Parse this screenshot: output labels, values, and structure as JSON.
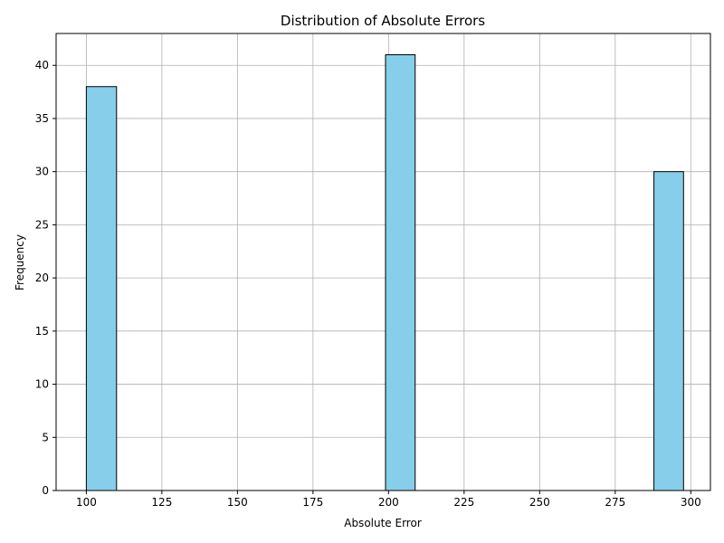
{
  "chart_data": {
    "type": "bar",
    "title": "Distribution of Absolute Errors",
    "xlabel": "Absolute Error",
    "ylabel": "Frequency",
    "xlim": [
      90,
      306.5
    ],
    "ylim": [
      0,
      43
    ],
    "x_ticks": [
      100,
      125,
      150,
      175,
      200,
      225,
      250,
      275,
      300
    ],
    "y_ticks": [
      0,
      5,
      10,
      15,
      20,
      25,
      30,
      35,
      40
    ],
    "grid": true,
    "bins": [
      {
        "start": 100,
        "end": 110,
        "count": 38
      },
      {
        "start": 199,
        "end": 208.8,
        "count": 41
      },
      {
        "start": 287.8,
        "end": 297.6,
        "count": 30
      }
    ],
    "colors": {
      "bar_fill": "#87CEEB",
      "bar_edge": "#000000",
      "grid": "#b0b0b0"
    }
  }
}
